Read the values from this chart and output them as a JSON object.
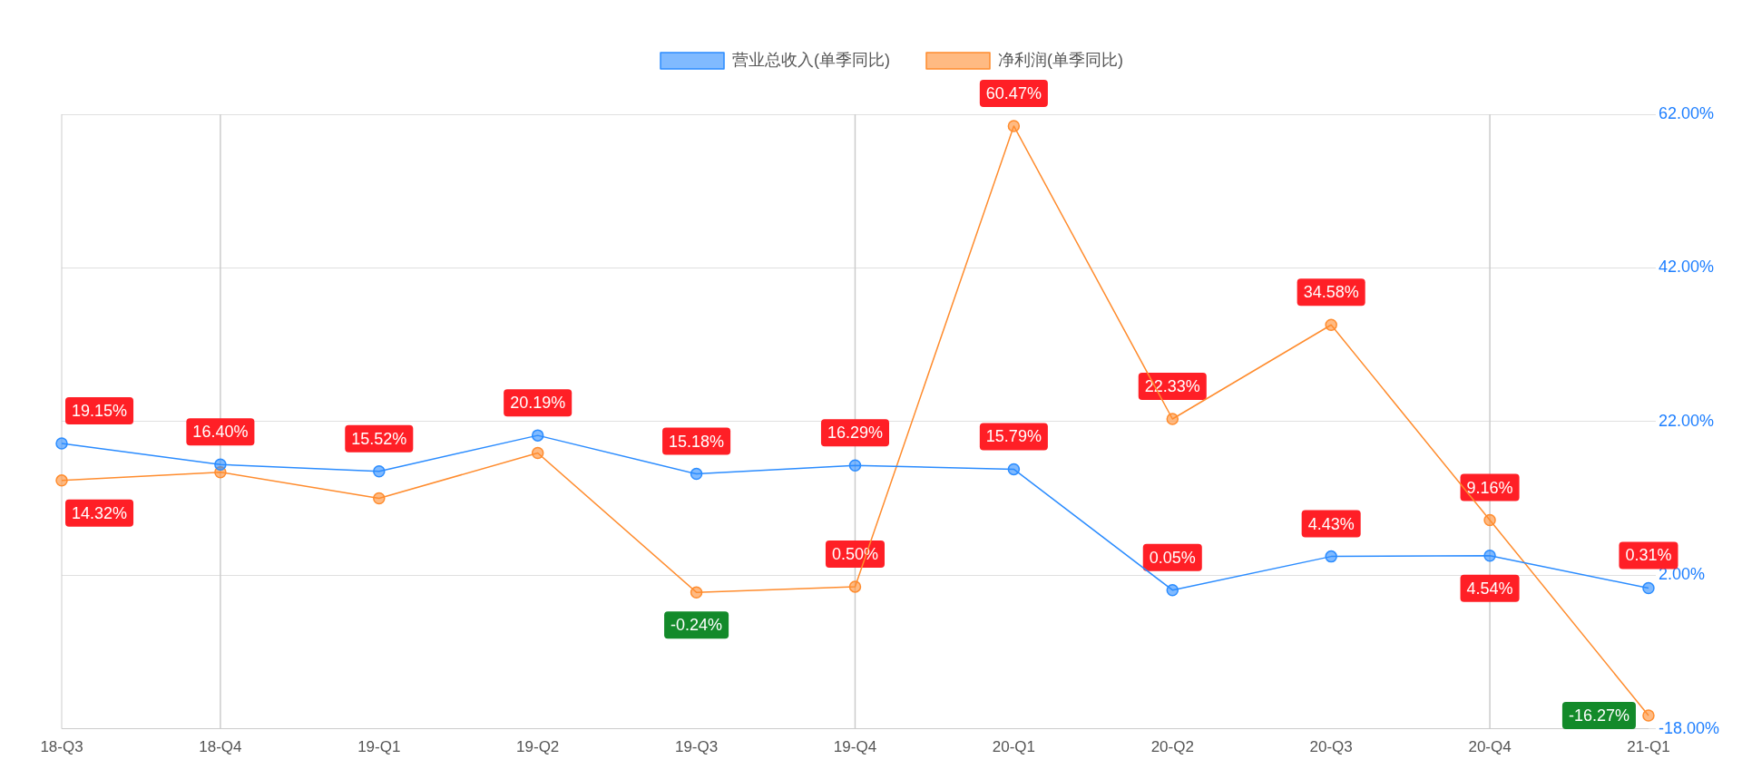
{
  "chart_data": {
    "type": "line",
    "categories": [
      "18-Q3",
      "18-Q4",
      "19-Q1",
      "19-Q2",
      "19-Q3",
      "19-Q4",
      "20-Q1",
      "20-Q2",
      "20-Q3",
      "20-Q4",
      "21-Q1"
    ],
    "series": [
      {
        "name": "营业总收入(单季同比)",
        "color": "#2b8cff",
        "values": [
          19.15,
          16.4,
          15.52,
          20.19,
          15.18,
          16.29,
          15.79,
          0.05,
          4.43,
          4.54,
          0.31
        ],
        "value_labels": [
          "19.15%",
          "16.40%",
          "15.52%",
          "20.19%",
          "15.18%",
          "16.29%",
          "15.79%",
          "0.05%",
          "4.43%",
          "4.54%",
          "0.31%"
        ]
      },
      {
        "name": "净利润(单季同比)",
        "color": "#ff8c2e",
        "values": [
          14.32,
          15.4,
          12.0,
          17.9,
          -0.24,
          0.5,
          60.47,
          22.33,
          34.58,
          9.16,
          -16.27
        ],
        "value_labels": [
          "14.32%",
          null,
          null,
          null,
          "-0.24%",
          "0.50%",
          "60.47%",
          "22.33%",
          "34.58%",
          "9.16%",
          "-16.27%"
        ]
      }
    ],
    "ylim": [
      -18,
      62
    ],
    "yticks": [
      {
        "value": -18,
        "label": "-18.00%"
      },
      {
        "value": 2,
        "label": "2.00%"
      },
      {
        "value": 22,
        "label": "22.00%"
      },
      {
        "value": 42,
        "label": "42.00%"
      },
      {
        "value": 62,
        "label": "62.00%"
      }
    ],
    "grid": "y",
    "legend": "top",
    "marker": "circle",
    "line_style": "solid",
    "ref_lines": [
      {
        "axis": "x",
        "value": "18-Q4",
        "color": "#cccccc"
      },
      {
        "axis": "x",
        "value": "19-Q4",
        "color": "#cccccc"
      },
      {
        "axis": "x",
        "value": "20-Q4",
        "color": "#cccccc"
      }
    ]
  }
}
